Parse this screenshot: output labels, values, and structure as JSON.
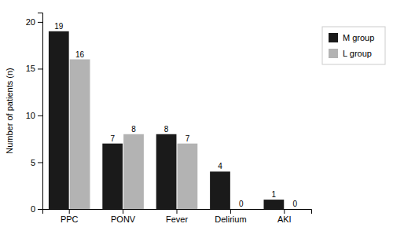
{
  "chart_data": {
    "type": "bar",
    "categories": [
      "PPC",
      "PONV",
      "Fever",
      "Delirium",
      "AKI"
    ],
    "series": [
      {
        "name": "M group",
        "color": "#1a1a1a",
        "values": [
          19,
          7,
          8,
          4,
          1
        ]
      },
      {
        "name": "L group",
        "color": "#b3b3b3",
        "values": [
          16,
          8,
          7,
          0,
          0
        ]
      }
    ],
    "ylabel": "Number of patients (n)",
    "ylim": [
      0,
      21
    ],
    "yticks": [
      0,
      5,
      10,
      15,
      20
    ],
    "data_labels": true,
    "grid": false,
    "legend": "right"
  }
}
